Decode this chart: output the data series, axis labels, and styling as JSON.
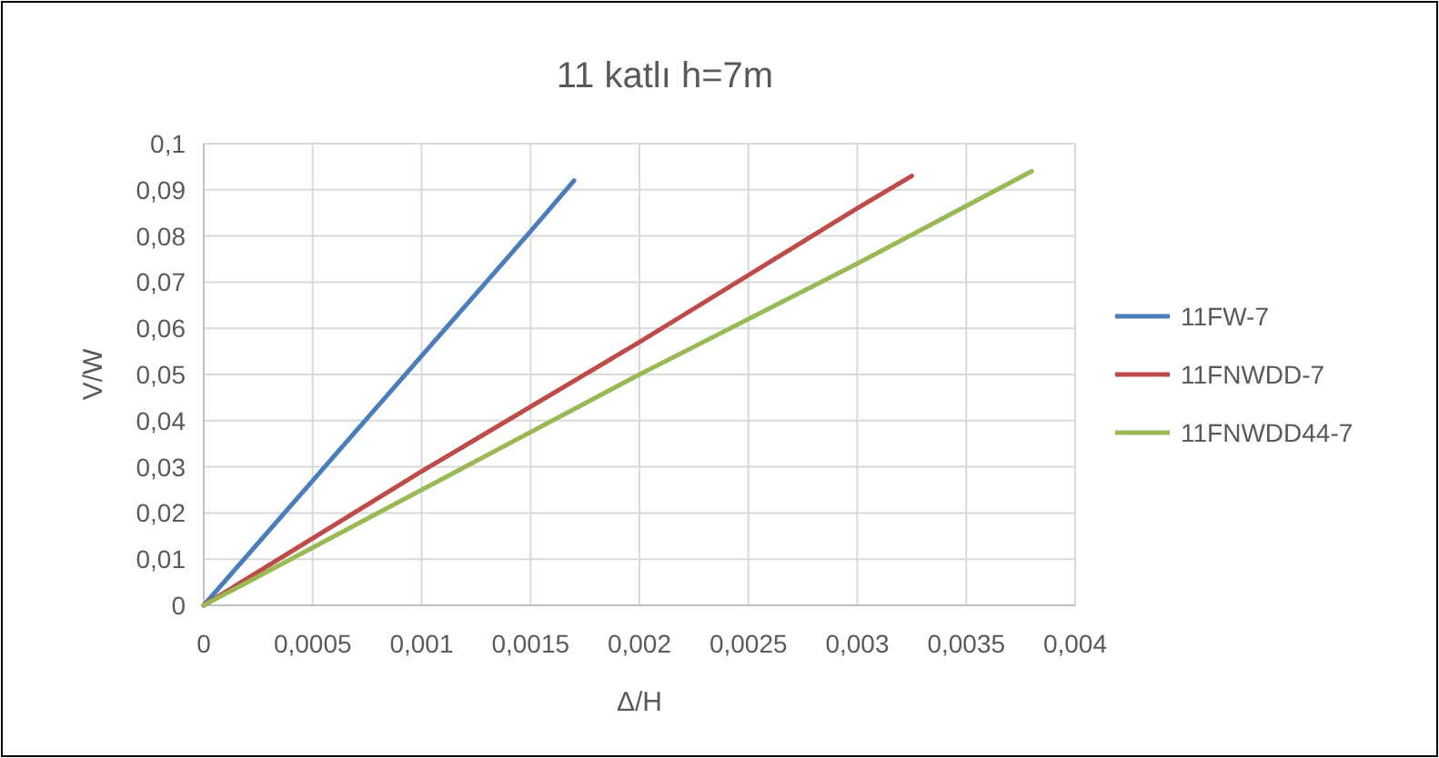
{
  "chart_data": {
    "type": "line",
    "title": "11 katlı h=7m",
    "xlabel": "Δ/H",
    "ylabel": "V/W",
    "xlim": [
      0,
      0.004
    ],
    "ylim": [
      0,
      0.1
    ],
    "xticks": [
      0,
      {
        "value": 0.0005,
        "label": "0,0005"
      },
      {
        "value": 0.001,
        "label": "0,001"
      },
      {
        "value": 0.0015,
        "label": "0,0015"
      },
      {
        "value": 0.002,
        "label": "0,002"
      },
      {
        "value": 0.0025,
        "label": "0,0025"
      },
      {
        "value": 0.003,
        "label": "0,003"
      },
      {
        "value": 0.0035,
        "label": "0,0035"
      },
      {
        "value": 0.004,
        "label": "0,004"
      }
    ],
    "yticks": [
      0,
      {
        "value": 0.01,
        "label": "0,01"
      },
      {
        "value": 0.02,
        "label": "0,02"
      },
      {
        "value": 0.03,
        "label": "0,03"
      },
      {
        "value": 0.04,
        "label": "0,04"
      },
      {
        "value": 0.05,
        "label": "0,05"
      },
      {
        "value": 0.06,
        "label": "0,06"
      },
      {
        "value": 0.07,
        "label": "0,07"
      },
      {
        "value": 0.08,
        "label": "0,08"
      },
      {
        "value": 0.09,
        "label": "0,09"
      },
      {
        "value": 0.1,
        "label": "0,1"
      }
    ],
    "grid": true,
    "legend": "right",
    "marker": "none",
    "line_style": "solid",
    "series": [
      {
        "name": "11FW-7",
        "color": "#4a7ebb",
        "x": [
          0,
          0.0005,
          0.001,
          0.0015,
          0.0017
        ],
        "values": [
          0,
          0.027,
          0.054,
          0.081,
          0.092
        ]
      },
      {
        "name": "11FNWDD-7",
        "color": "#be4b48",
        "x": [
          0,
          0.001,
          0.002,
          0.003,
          0.00325
        ],
        "values": [
          0,
          0.029,
          0.057,
          0.086,
          0.093
        ]
      },
      {
        "name": "11FNWDD44-7",
        "color": "#98b954",
        "x": [
          0,
          0.001,
          0.002,
          0.003,
          0.0038
        ],
        "values": [
          0,
          0.025,
          0.05,
          0.074,
          0.094
        ]
      }
    ]
  }
}
